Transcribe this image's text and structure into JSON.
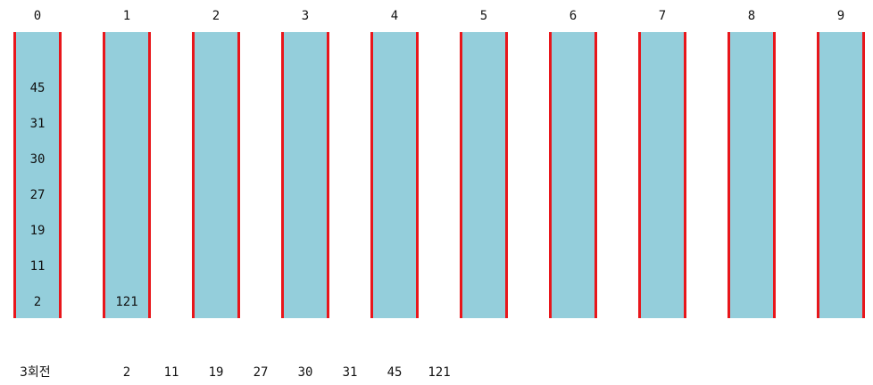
{
  "buckets": [
    {
      "label": "0",
      "values": [
        "2",
        "11",
        "19",
        "27",
        "30",
        "31",
        "45"
      ]
    },
    {
      "label": "1",
      "values": [
        "121"
      ]
    },
    {
      "label": "2",
      "values": []
    },
    {
      "label": "3",
      "values": []
    },
    {
      "label": "4",
      "values": []
    },
    {
      "label": "5",
      "values": []
    },
    {
      "label": "6",
      "values": []
    },
    {
      "label": "7",
      "values": []
    },
    {
      "label": "8",
      "values": []
    },
    {
      "label": "9",
      "values": []
    }
  ],
  "pass_label": "3회전",
  "result_values": [
    "2",
    "11",
    "19",
    "27",
    "30",
    "31",
    "45",
    "121"
  ],
  "colors": {
    "bucket_fill": "#94cedb",
    "bucket_border": "#e8161b"
  }
}
